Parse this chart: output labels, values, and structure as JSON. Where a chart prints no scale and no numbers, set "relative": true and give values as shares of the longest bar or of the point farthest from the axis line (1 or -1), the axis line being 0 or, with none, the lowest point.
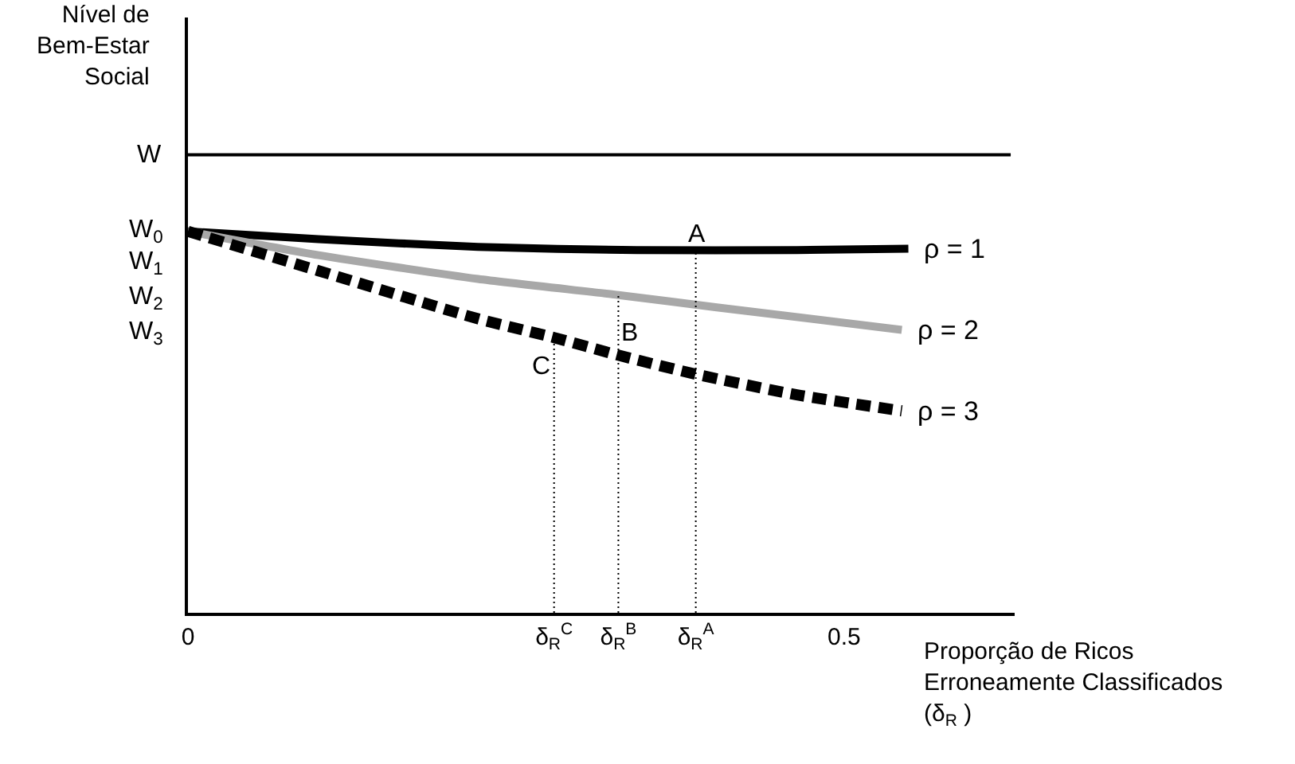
{
  "chart_data": {
    "type": "line",
    "relative": true,
    "xlabel": "Proporção de Ricos\nErroneamente Classificados\n(δ$_{R}$ )",
    "ylabel": "Nível de\nBem-Estar\nSocial",
    "xlim": [
      0,
      0.63
    ],
    "xticks": [
      0,
      {
        "value": 0.279,
        "label": "δ$_{R}$$^{C}$"
      },
      {
        "value": 0.328,
        "label": "δ$_{R}$$^{B}$"
      },
      {
        "value": 0.387,
        "label": "δ$_{R}$$^{A}$"
      },
      0.5
    ],
    "marker": "none",
    "grid": false,
    "legend": false,
    "series": [
      {
        "color": "#000000",
        "x": [
          0,
          0.627
        ],
        "values": [
          1,
          1
        ],
        "line_style": "solid"
      },
      {
        "name": "ρ = 1",
        "color": "#000000",
        "x": [
          0,
          0.0995,
          0.221,
          0.342,
          0.464,
          0.549
        ],
        "values": [
          0.833,
          0.816,
          0.799,
          0.792,
          0.792,
          0.795
        ],
        "line_style": "solid"
      },
      {
        "name": "ρ = 2",
        "color": "#a8a8a8",
        "x": [
          0,
          0.0995,
          0.221,
          0.328,
          0.403,
          0.544
        ],
        "values": [
          0.833,
          0.781,
          0.729,
          0.694,
          0.667,
          0.618
        ],
        "line_style": "solid"
      },
      {
        "name": "ρ = 3",
        "color": "#000000",
        "x": [
          0,
          0.0995,
          0.221,
          0.279,
          0.328,
          0.387,
          0.464,
          0.544
        ],
        "values": [
          0.833,
          0.747,
          0.642,
          0.601,
          0.5625,
          0.521,
          0.476,
          0.441
        ],
        "line_style": "dashed"
      },
      {
        "color": "#000000",
        "x": [
          0.279,
          0.279
        ],
        "values": [
          0,
          0.601
        ],
        "line_style": "dotted"
      },
      {
        "color": "#000000",
        "x": [
          0.328,
          0.328
        ],
        "values": [
          0,
          0.694
        ],
        "line_style": "dotted"
      },
      {
        "color": "#000000",
        "x": [
          0.387,
          0.387
        ],
        "values": [
          0,
          0.792
        ],
        "line_style": "dotted"
      }
    ],
    "annotations": [
      {
        "text": "W",
        "x": 0,
        "y": 1
      },
      {
        "text": "W$_{0}$",
        "x": 0,
        "y": 0.833
      },
      "W$_{1}$",
      "W$_{2}$",
      "W$_{3}$",
      "A",
      "B",
      "C"
    ]
  }
}
